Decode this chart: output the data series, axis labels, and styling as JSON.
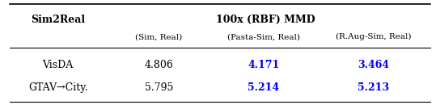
{
  "title_text": "100x (RBF) MMD",
  "col0_header": "Sim2Real",
  "col1_header": "(Sim, Real)",
  "col2_header": "(Pasta-Sim, Real)",
  "col3_header": "(R.Aug-Sim, Real)",
  "rows": [
    {
      "label": "VisDA",
      "v1": "4.806",
      "v2": "4.171",
      "v3": "3.464"
    },
    {
      "label": "GTAV→City.",
      "v1": "5.795",
      "v2": "5.214",
      "v3": "5.213"
    }
  ],
  "blue_color": "#0000FF",
  "black_color": "#000000",
  "bg_color": "#FFFFFF",
  "header_fontsize": 9,
  "data_fontsize": 9,
  "figwidth": 5.44,
  "figheight": 1.3
}
